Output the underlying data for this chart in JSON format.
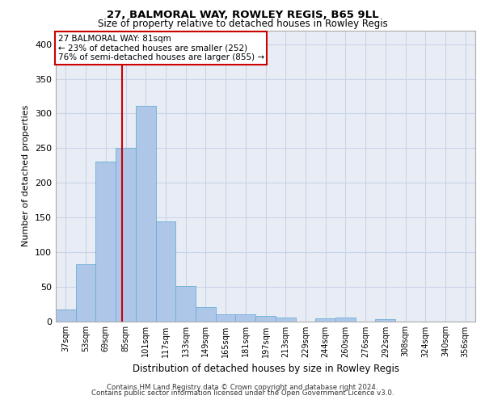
{
  "title_line1": "27, BALMORAL WAY, ROWLEY REGIS, B65 9LL",
  "title_line2": "Size of property relative to detached houses in Rowley Regis",
  "xlabel": "Distribution of detached houses by size in Rowley Regis",
  "ylabel": "Number of detached properties",
  "categories": [
    "37sqm",
    "53sqm",
    "69sqm",
    "85sqm",
    "101sqm",
    "117sqm",
    "133sqm",
    "149sqm",
    "165sqm",
    "181sqm",
    "197sqm",
    "213sqm",
    "229sqm",
    "244sqm",
    "260sqm",
    "276sqm",
    "292sqm",
    "308sqm",
    "324sqm",
    "340sqm",
    "356sqm"
  ],
  "values": [
    17,
    82,
    231,
    250,
    311,
    144,
    51,
    20,
    10,
    10,
    8,
    5,
    0,
    4,
    5,
    0,
    3,
    0,
    0,
    0,
    0
  ],
  "bar_color": "#aec6e8",
  "bar_edge_color": "#6aaed6",
  "vline_x": 2.82,
  "vline_color": "#cc0000",
  "annotation_text": "27 BALMORAL WAY: 81sqm\n← 23% of detached houses are smaller (252)\n76% of semi-detached houses are larger (855) →",
  "annotation_box_color": "#ffffff",
  "annotation_box_edge_color": "#cc0000",
  "ylim": [
    0,
    420
  ],
  "yticks": [
    0,
    50,
    100,
    150,
    200,
    250,
    300,
    350,
    400
  ],
  "grid_color": "#c8d4e8",
  "bg_color": "#e8edf5",
  "footer_line1": "Contains HM Land Registry data © Crown copyright and database right 2024.",
  "footer_line2": "Contains public sector information licensed under the Open Government Licence v3.0."
}
